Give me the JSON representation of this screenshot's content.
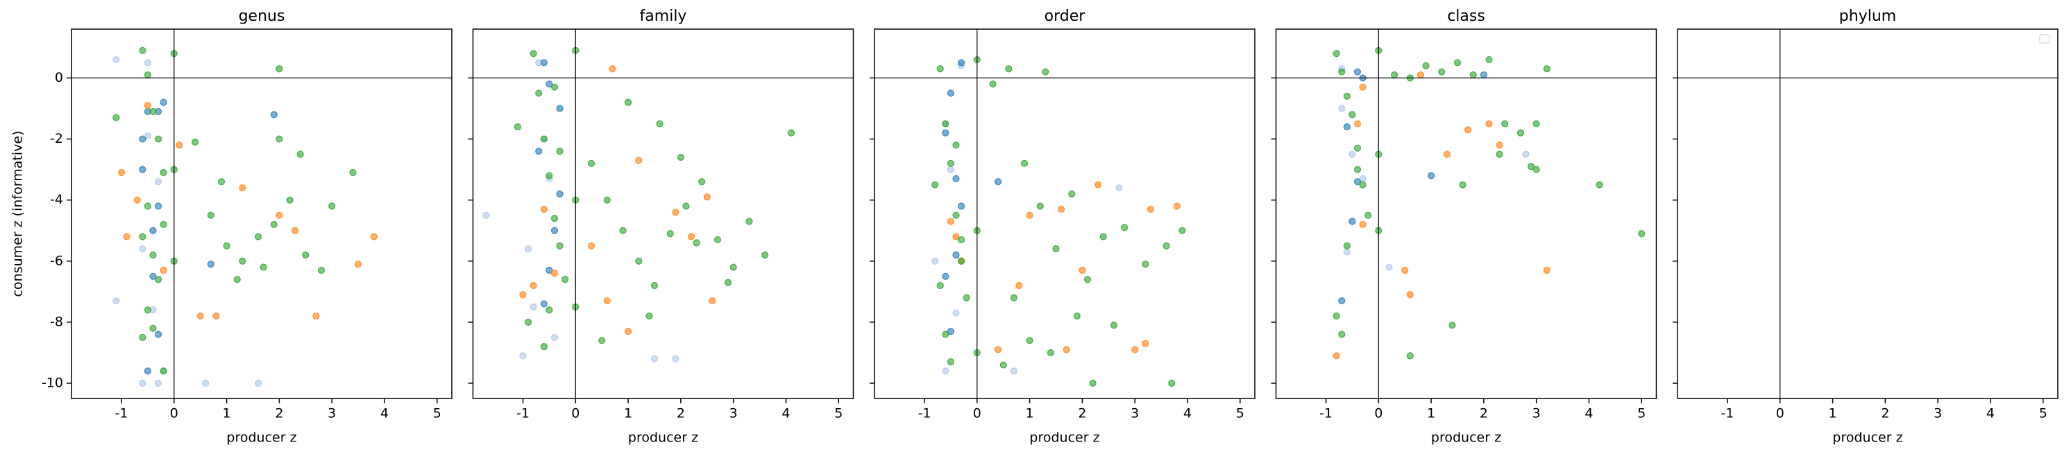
{
  "chart_data": [
    {
      "type": "scatter",
      "title": "genus",
      "xlabel": "producer z",
      "ylabel": "consumer z (informative)",
      "xlim": [
        -1.95,
        5.28
      ],
      "ylim": [
        -10.5,
        1.6
      ],
      "xticks": [
        -1,
        0,
        1,
        2,
        3,
        4,
        5
      ],
      "yticks": [
        -10,
        -8,
        -6,
        -4,
        -2,
        0
      ],
      "show_yticklabels": true,
      "zero_lines": true,
      "marker_alpha": 0.6,
      "series": [
        {
          "color": "#aec7e8",
          "x": [
            -1.1,
            -1.1,
            0.6,
            1.6,
            -0.6,
            -0.3,
            -0.5,
            -0.2,
            -0.4,
            -0.6,
            -0.3,
            -0.5
          ],
          "values": [
            0.6,
            -7.3,
            -10,
            -10,
            -10,
            -10,
            0.5,
            -9.6,
            -7.6,
            -5.6,
            -3.4,
            -1.9
          ]
        },
        {
          "color": "#1f77b4",
          "x": [
            -0.5,
            -0.3,
            -0.6,
            -0.4,
            -0.3,
            -0.5,
            -0.2,
            1.9,
            0.7,
            -0.4,
            -0.6,
            -0.3
          ],
          "values": [
            -1.1,
            -1.1,
            -3,
            -5,
            -8.4,
            -9.6,
            -0.8,
            -1.2,
            -6.1,
            -6.5,
            -2,
            -4.2
          ]
        },
        {
          "color": "#ff7f0e",
          "x": [
            -1.0,
            -0.9,
            0.5,
            0.8,
            2.7,
            3.5,
            3.8,
            2.3,
            1.3,
            -0.2,
            -0.5,
            2.0,
            -0.7,
            0.1
          ],
          "values": [
            -3.1,
            -5.2,
            -7.8,
            -7.8,
            -7.8,
            -6.1,
            -5.2,
            -5.0,
            -3.6,
            -6.3,
            -0.9,
            -4.5,
            -4.0,
            -2.2
          ]
        },
        {
          "color": "#2ca02c",
          "x": [
            -1.1,
            -0.6,
            -0.5,
            -0.4,
            -0.3,
            -0.2,
            -0.5,
            -0.6,
            -0.4,
            -0.3,
            -0.5,
            -0.2,
            0,
            0,
            0,
            0.4,
            0.7,
            1.0,
            1.3,
            1.6,
            1.9,
            2.2,
            2.0,
            2.5,
            2.8,
            3.0,
            3.4,
            1.2,
            0.9,
            1.7,
            2.4,
            -0.4,
            -0.6,
            -0.2,
            2.0
          ],
          "values": [
            -1.3,
            0.9,
            0.1,
            -1.1,
            -2.0,
            -3.1,
            -4.2,
            -5.2,
            -5.8,
            -6.6,
            -7.6,
            -9.6,
            0.8,
            -3.0,
            -6.0,
            -2.1,
            -4.5,
            -5.5,
            -6.0,
            -5.2,
            -4.8,
            -4.0,
            -2.0,
            -5.8,
            -6.3,
            -4.2,
            -3.1,
            -6.6,
            -3.4,
            -6.2,
            -2.5,
            -8.2,
            -8.5,
            -4.8,
            0.3
          ]
        }
      ]
    },
    {
      "type": "scatter",
      "title": "family",
      "xlabel": "producer z",
      "xlim": [
        -1.95,
        5.28
      ],
      "ylim": [
        -10.5,
        1.6
      ],
      "xticks": [
        -1,
        0,
        1,
        2,
        3,
        4,
        5
      ],
      "yticks": [
        -10,
        -8,
        -6,
        -4,
        -2,
        0
      ],
      "show_yticklabels": false,
      "zero_lines": true,
      "marker_alpha": 0.6,
      "series": [
        {
          "color": "#aec7e8",
          "x": [
            -1.7,
            -1.0,
            -0.8,
            -0.6,
            1.5,
            1.9,
            -0.7,
            -0.4,
            -0.9,
            -0.5
          ],
          "values": [
            -4.5,
            -9.1,
            -7.5,
            -2,
            -9.2,
            -9.2,
            0.5,
            -8.5,
            -5.6,
            -3.3
          ]
        },
        {
          "color": "#1f77b4",
          "x": [
            -0.6,
            -0.5,
            -0.3,
            -0.7,
            -0.4,
            -0.6,
            -0.5,
            -0.3
          ],
          "values": [
            0.5,
            -0.2,
            -1,
            -2.4,
            -5,
            -7.4,
            -6.3,
            -3.8
          ]
        },
        {
          "color": "#ff7f0e",
          "x": [
            0.7,
            -1.0,
            -0.6,
            -0.4,
            0.6,
            1.0,
            2.2,
            2.5,
            2.6,
            1.9,
            -0.8,
            0.3,
            1.2
          ],
          "values": [
            0.3,
            -7.1,
            -4.3,
            -6.4,
            -7.3,
            -8.3,
            -5.2,
            -3.9,
            -7.3,
            -4.4,
            -6.8,
            -5.5,
            -2.7
          ]
        },
        {
          "color": "#2ca02c",
          "x": [
            -1.1,
            -0.8,
            -0.7,
            -0.6,
            -0.5,
            -0.4,
            -0.3,
            -0.2,
            -0.5,
            -0.6,
            -0.4,
            -0.3,
            0,
            0,
            0,
            0.3,
            0.6,
            0.9,
            1.2,
            1.5,
            1.8,
            2.1,
            2.4,
            2.7,
            3.0,
            3.3,
            3.6,
            4.1,
            1.0,
            1.6,
            2.0,
            2.9,
            0.5,
            1.4,
            2.3,
            -0.9
          ],
          "values": [
            -1.6,
            0.8,
            -0.5,
            -2.0,
            -3.2,
            -4.6,
            -5.5,
            -6.6,
            -7.6,
            -8.8,
            -0.3,
            -2.4,
            0.9,
            -4.0,
            -7.5,
            -2.8,
            -4.0,
            -5.0,
            -6.0,
            -6.8,
            -5.1,
            -4.2,
            -3.4,
            -5.3,
            -6.2,
            -4.7,
            -5.8,
            -1.8,
            -0.8,
            -1.5,
            -2.6,
            -6.7,
            -8.6,
            -7.8,
            -5.4,
            -8.0
          ]
        }
      ]
    },
    {
      "type": "scatter",
      "title": "order",
      "xlabel": "producer z",
      "xlim": [
        -1.95,
        5.28
      ],
      "ylim": [
        -10.5,
        1.6
      ],
      "xticks": [
        -1,
        0,
        1,
        2,
        3,
        4,
        5
      ],
      "yticks": [
        -10,
        -8,
        -6,
        -4,
        -2,
        0
      ],
      "show_yticklabels": false,
      "zero_lines": true,
      "marker_alpha": 0.6,
      "series": [
        {
          "color": "#aec7e8",
          "x": [
            -0.6,
            -0.3,
            -0.5,
            0.7,
            2.7,
            -0.8,
            -0.6,
            -0.4
          ],
          "values": [
            -9.6,
            0.4,
            -3,
            -9.6,
            -3.6,
            -6,
            -1.5,
            -7.7
          ]
        },
        {
          "color": "#1f77b4",
          "x": [
            -0.3,
            -0.5,
            -0.6,
            -0.4,
            -0.3,
            0.4,
            -0.6,
            -0.5,
            -0.4
          ],
          "values": [
            0.5,
            -0.5,
            -1.8,
            -3.3,
            -4.2,
            -3.4,
            -6.5,
            -8.3,
            -5.8
          ]
        },
        {
          "color": "#ff7f0e",
          "x": [
            -0.4,
            -0.5,
            1.6,
            2.3,
            3.3,
            3.8,
            3.0,
            3.2,
            2.0,
            0.4,
            1.7,
            -0.3,
            0.8,
            1.0
          ],
          "values": [
            -5.2,
            -4.7,
            -4.3,
            -3.5,
            -4.3,
            -4.2,
            -8.9,
            -8.7,
            -6.3,
            -8.9,
            -8.9,
            -6.0,
            -6.8,
            -4.5
          ]
        },
        {
          "color": "#2ca02c",
          "x": [
            -0.8,
            -0.7,
            -0.6,
            -0.5,
            -0.4,
            -0.3,
            -0.2,
            -0.6,
            -0.5,
            -0.3,
            0,
            0,
            0,
            0.3,
            0.6,
            0.9,
            1.2,
            1.5,
            1.8,
            2.1,
            2.4,
            2.8,
            3.2,
            3.6,
            3.9,
            1.3,
            0.7,
            1.9,
            2.6,
            0.5,
            1.0,
            1.4,
            2.2,
            3.7,
            -0.7,
            -0.4
          ],
          "values": [
            -3.5,
            0.3,
            -1.5,
            -2.8,
            -4.5,
            -6.0,
            -7.2,
            -8.4,
            -9.3,
            -5.3,
            0.6,
            -5.0,
            -9.0,
            -0.2,
            0.3,
            -2.8,
            -4.2,
            -5.6,
            -3.8,
            -6.6,
            -5.2,
            -4.9,
            -6.1,
            -5.5,
            -5.0,
            0.2,
            -7.2,
            -7.8,
            -8.1,
            -9.4,
            -8.6,
            -9.0,
            -10.0,
            -10.0,
            -6.8,
            -2.2
          ]
        }
      ]
    },
    {
      "type": "scatter",
      "title": "class",
      "xlabel": "producer z",
      "xlim": [
        -1.95,
        5.28
      ],
      "ylim": [
        -10.5,
        1.6
      ],
      "xticks": [
        -1,
        0,
        1,
        2,
        3,
        4,
        5
      ],
      "yticks": [
        -10,
        -8,
        -6,
        -4,
        -2,
        0
      ],
      "show_yticklabels": false,
      "zero_lines": true,
      "marker_alpha": 0.6,
      "series": [
        {
          "color": "#aec7e8",
          "x": [
            -0.7,
            -0.5,
            0.2,
            -0.3,
            2.8,
            -0.6,
            -0.7
          ],
          "values": [
            -1,
            -2.5,
            -6.2,
            -3.3,
            -2.5,
            -5.7,
            0.3
          ]
        },
        {
          "color": "#1f77b4",
          "x": [
            -0.4,
            -0.3,
            -0.6,
            -0.4,
            2.0,
            1.0,
            -0.7,
            -0.5
          ],
          "values": [
            0.2,
            0,
            -1.6,
            -3.4,
            0.1,
            -3.2,
            -7.3,
            -4.7
          ]
        },
        {
          "color": "#ff7f0e",
          "x": [
            -0.3,
            -0.4,
            1.7,
            2.1,
            2.3,
            3.2,
            0.5,
            0.6,
            -0.8,
            -0.3,
            0.8,
            1.3
          ],
          "values": [
            -0.3,
            -1.5,
            -1.7,
            -1.5,
            -2.2,
            -6.3,
            -6.3,
            -7.1,
            -9.1,
            -4.8,
            0.1,
            -2.5
          ]
        },
        {
          "color": "#2ca02c",
          "x": [
            -0.8,
            -0.7,
            -0.6,
            -0.5,
            -0.4,
            -0.3,
            -0.2,
            -0.6,
            -0.4,
            -0.7,
            0,
            0,
            0,
            0.3,
            0.6,
            0.9,
            1.2,
            1.5,
            1.8,
            2.1,
            2.4,
            2.7,
            3.0,
            3.2,
            2.3,
            1.6,
            2.9,
            3.0,
            4.2,
            5.0,
            1.4,
            0.6,
            -0.8
          ],
          "values": [
            0.8,
            0.2,
            -0.6,
            -1.2,
            -2.3,
            -3.5,
            -4.5,
            -5.5,
            -3.0,
            -8.4,
            0.9,
            -2.5,
            -5.0,
            0.1,
            0.0,
            0.4,
            0.2,
            0.5,
            0.1,
            0.6,
            -1.5,
            -1.8,
            -1.5,
            0.3,
            -2.5,
            -3.5,
            -2.9,
            -3.0,
            -3.5,
            -5.1,
            -8.1,
            -9.1,
            -7.8
          ]
        }
      ]
    },
    {
      "type": "scatter",
      "title": "phylum",
      "xlabel": "producer z",
      "xlim": [
        -1.95,
        5.28
      ],
      "ylim": [
        -10.5,
        1.6
      ],
      "xticks": [
        -1,
        0,
        1,
        2,
        3,
        4,
        5
      ],
      "yticks": [
        -10,
        -8,
        -6,
        -4,
        -2,
        0
      ],
      "show_yticklabels": false,
      "zero_lines": true,
      "legend": "upper right",
      "series": []
    }
  ]
}
